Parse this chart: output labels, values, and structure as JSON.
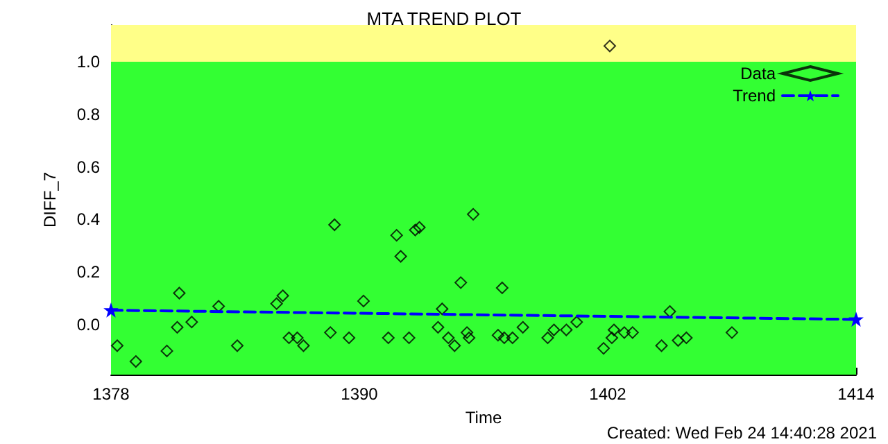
{
  "chart_data": {
    "type": "scatter",
    "title": "MTA TREND PLOT",
    "xlabel": "Time",
    "ylabel": "DIFF_7",
    "annotations": [
      "Created: Wed Feb 24 14:40:28 2021"
    ],
    "xlim": [
      1378,
      1414
    ],
    "xticks": [
      1378,
      1390,
      1402,
      1414
    ],
    "ylim": [
      -0.19,
      1.14
    ],
    "yticks": [
      {
        "value": 0,
        "label": "0.0"
      },
      {
        "value": 0.2,
        "label": "0.2"
      },
      {
        "value": 0.4,
        "label": "0.4"
      },
      {
        "value": 0.6,
        "label": "0.6"
      },
      {
        "value": 0.8,
        "label": "0.8"
      },
      {
        "value": 1,
        "label": "1.0"
      }
    ],
    "grid": false,
    "legend": "top right",
    "bands": [
      {
        "axis": "y",
        "from": -0.19,
        "to": 1.0,
        "color": "#33ff33"
      },
      {
        "axis": "y",
        "from": 1.0,
        "to": 1.14,
        "color": "#ffff88"
      }
    ],
    "series": [
      {
        "name": "Data",
        "marker": "diamond",
        "color": "#000000",
        "x": [
          1378.3,
          1379.2,
          1380.7,
          1381.2,
          1381.3,
          1381.9,
          1383.2,
          1384.1,
          1386.0,
          1386.3,
          1386.6,
          1387.0,
          1387.3,
          1388.6,
          1388.8,
          1389.5,
          1390.2,
          1391.4,
          1391.8,
          1392.0,
          1392.4,
          1392.7,
          1392.9,
          1393.8,
          1394.0,
          1394.3,
          1394.6,
          1394.9,
          1395.2,
          1395.3,
          1395.5,
          1396.7,
          1396.9,
          1397.0,
          1397.4,
          1397.9,
          1399.1,
          1399.4,
          1400.0,
          1400.5,
          1401.8,
          1402.1,
          1402.2,
          1402.3,
          1402.8,
          1403.2,
          1404.6,
          1405.0,
          1405.4,
          1405.8,
          1408.0
        ],
        "values": [
          -0.08,
          -0.14,
          -0.1,
          -0.01,
          0.12,
          0.01,
          0.07,
          -0.08,
          0.08,
          0.11,
          -0.05,
          -0.05,
          -0.08,
          -0.03,
          0.38,
          -0.05,
          0.09,
          -0.05,
          0.34,
          0.26,
          -0.05,
          0.36,
          0.37,
          -0.01,
          0.06,
          -0.05,
          -0.08,
          0.16,
          -0.03,
          -0.05,
          0.42,
          -0.04,
          0.14,
          -0.05,
          -0.05,
          -0.01,
          -0.05,
          -0.02,
          -0.02,
          0.01,
          -0.09,
          1.06,
          -0.05,
          -0.02,
          -0.03,
          -0.03,
          -0.08,
          0.05,
          -0.06,
          -0.05,
          -0.03
        ]
      },
      {
        "name": "Trend",
        "type": "line",
        "marker": "star",
        "line_style": "dashed",
        "color": "#0000ff",
        "x": [
          1378,
          1414
        ],
        "values": [
          0.055,
          0.02
        ]
      }
    ]
  }
}
